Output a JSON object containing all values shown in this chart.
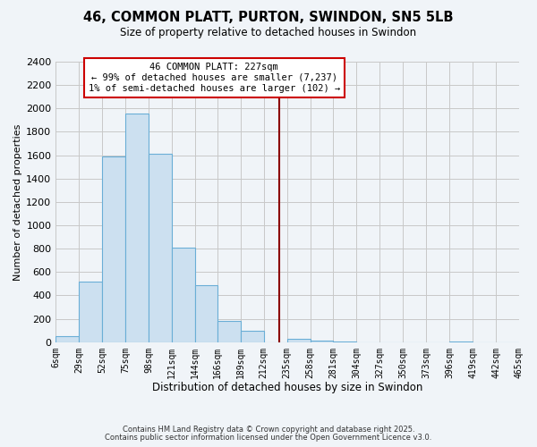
{
  "title": "46, COMMON PLATT, PURTON, SWINDON, SN5 5LB",
  "subtitle": "Size of property relative to detached houses in Swindon",
  "xlabel": "Distribution of detached houses by size in Swindon",
  "ylabel": "Number of detached properties",
  "bar_color": "#cce0f0",
  "bar_edge_color": "#6aaed6",
  "bin_edges": [
    6,
    29,
    52,
    75,
    98,
    121,
    144,
    166,
    189,
    212,
    235,
    258,
    281,
    304,
    327,
    350,
    373,
    396,
    419,
    442,
    465
  ],
  "bin_labels": [
    "6sqm",
    "29sqm",
    "52sqm",
    "75sqm",
    "98sqm",
    "121sqm",
    "144sqm",
    "166sqm",
    "189sqm",
    "212sqm",
    "235sqm",
    "258sqm",
    "281sqm",
    "304sqm",
    "327sqm",
    "350sqm",
    "373sqm",
    "396sqm",
    "419sqm",
    "442sqm",
    "465sqm"
  ],
  "bar_heights": [
    50,
    515,
    1590,
    1960,
    1610,
    805,
    485,
    185,
    95,
    0,
    30,
    15,
    5,
    0,
    0,
    0,
    0,
    5,
    0,
    0
  ],
  "property_line_x": 227,
  "property_line_color": "#8b0000",
  "annotation_title": "46 COMMON PLATT: 227sqm",
  "annotation_line1": "← 99% of detached houses are smaller (7,237)",
  "annotation_line2": "1% of semi-detached houses are larger (102) →",
  "ylim": [
    0,
    2400
  ],
  "yticks": [
    0,
    200,
    400,
    600,
    800,
    1000,
    1200,
    1400,
    1600,
    1800,
    2000,
    2200,
    2400
  ],
  "footnote1": "Contains HM Land Registry data © Crown copyright and database right 2025.",
  "footnote2": "Contains public sector information licensed under the Open Government Licence v3.0.",
  "bg_color": "#f0f4f8",
  "grid_color": "#c8c8c8"
}
